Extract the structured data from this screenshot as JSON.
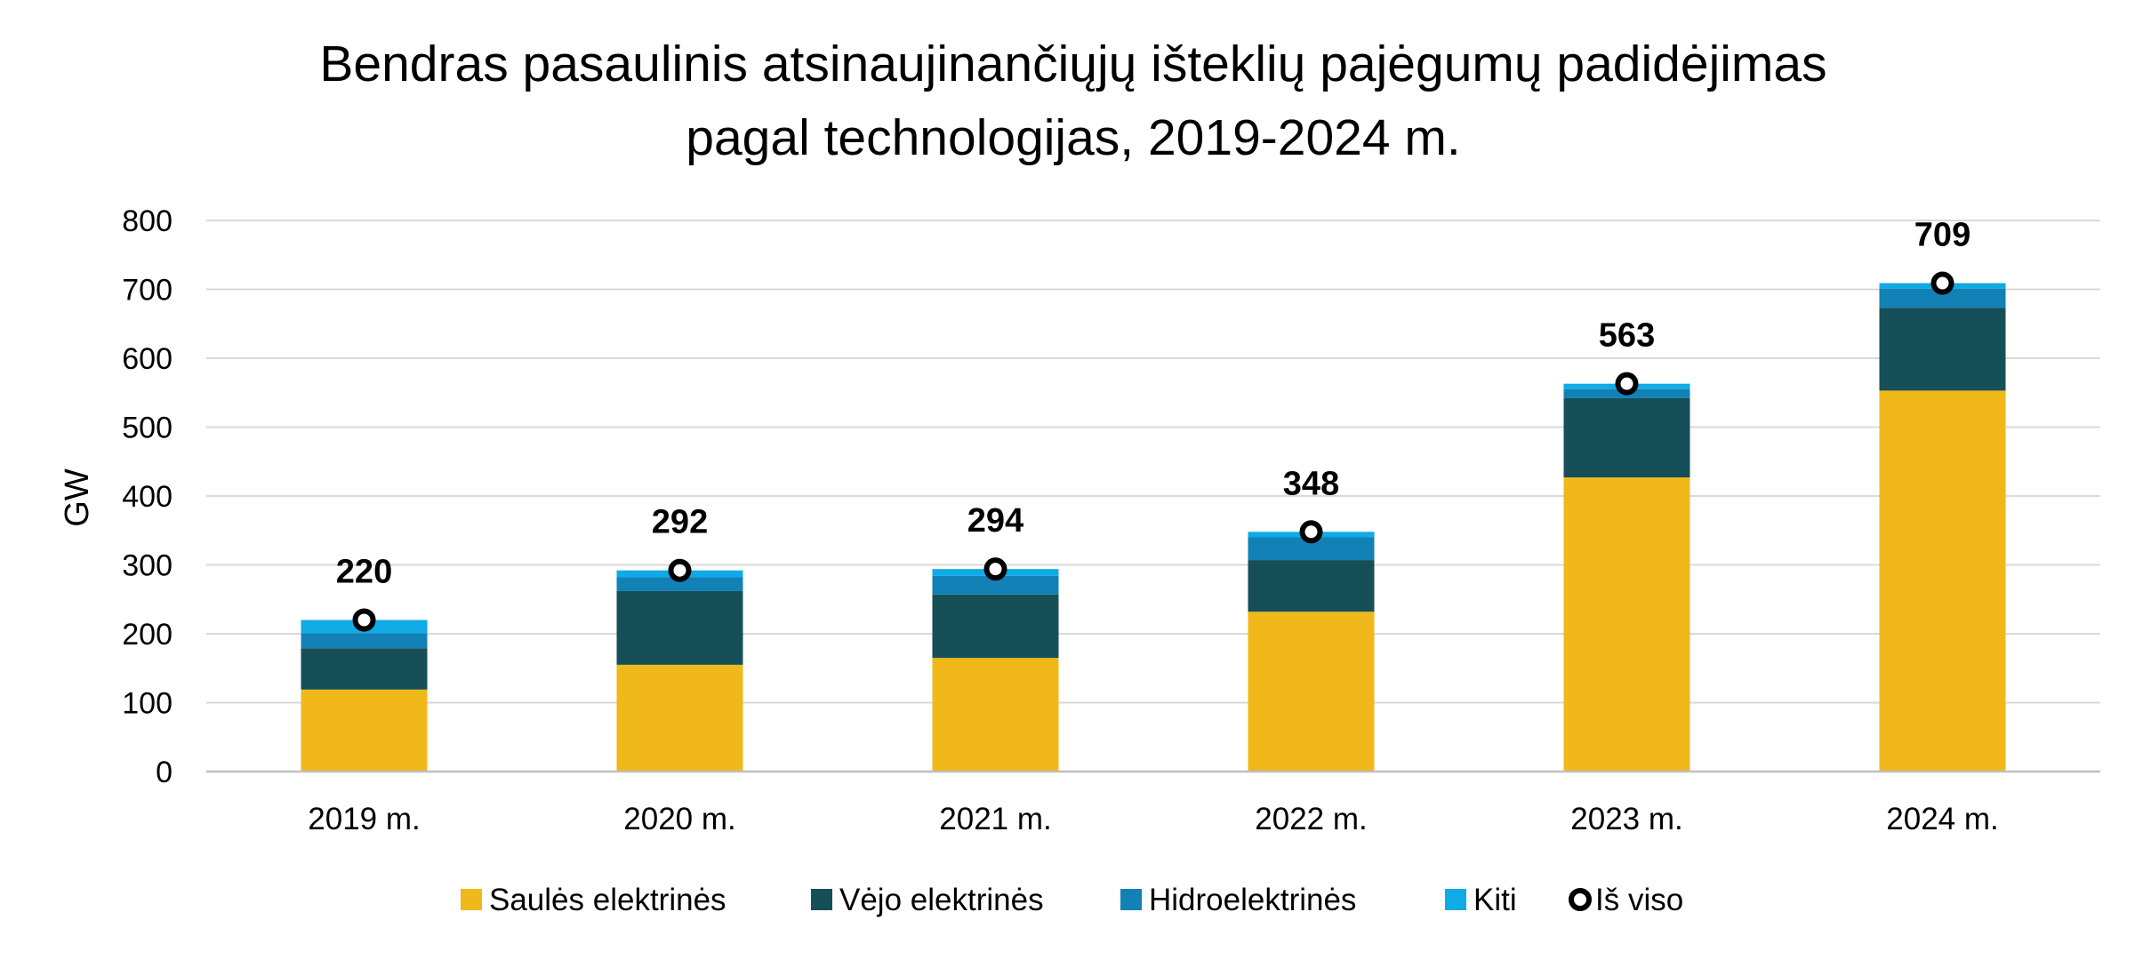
{
  "chart_data": {
    "type": "bar",
    "stacked": true,
    "title": [
      "Bendras pasaulinis atsinaujinančiųjų išteklių pajėgumų padidėjimas",
      "pagal technologijas, 2019-2024 m."
    ],
    "ylabel": "GW",
    "ylim": [
      0,
      800
    ],
    "yticks": [
      0,
      100,
      200,
      300,
      400,
      500,
      600,
      700,
      800
    ],
    "grid": true,
    "legend_position": "bottom",
    "categories": [
      "2019 m.",
      "2020 m.",
      "2021 m.",
      "2022 m.",
      "2023 m.",
      "2024 m."
    ],
    "series": [
      {
        "name": "Saulės elektrinės",
        "color": "#F0B81A",
        "values": [
          119,
          155,
          165,
          232,
          427,
          553
        ]
      },
      {
        "name": "Vėjo elektrinės",
        "color": "#174F58",
        "values": [
          60,
          107,
          92,
          75,
          115,
          120
        ]
      },
      {
        "name": "Hidroelektrinės",
        "color": "#1281B5",
        "values": [
          22,
          20,
          27,
          33,
          13,
          28
        ]
      },
      {
        "name": "Kiti",
        "color": "#10AAE6",
        "values": [
          19,
          10,
          10,
          8,
          8,
          8
        ]
      }
    ],
    "totals": {
      "name": "Iš viso",
      "values": [
        220,
        292,
        294,
        348,
        563,
        709
      ]
    }
  }
}
